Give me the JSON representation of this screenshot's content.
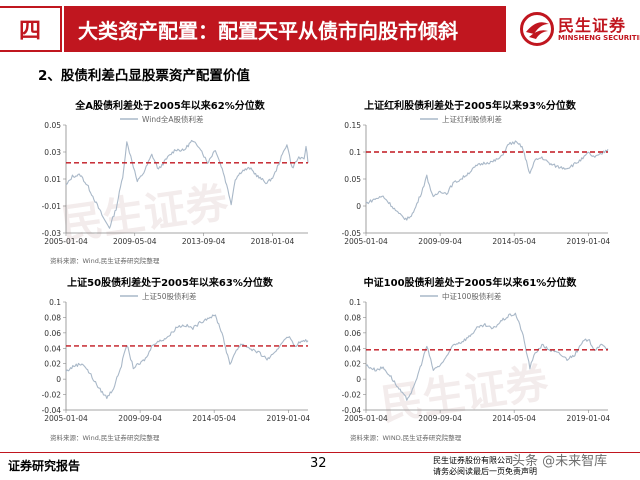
{
  "header": {
    "section_number": "四",
    "title": "大类资产配置：配置天平从债市向股市倾斜",
    "logo_cn": "民生证券",
    "logo_en": "MINSHENG SECURITIES"
  },
  "subheading": "2、股债利差凸显股票资产配置价值",
  "footer": {
    "left": "证券研究报告",
    "page": "32",
    "right_line1": "民生证券股份有限公司",
    "right_line2": "请务必阅读最后一页免责声明",
    "watermark": "头条 @未来智库"
  },
  "colors": {
    "brand": "#c0161f",
    "series": "#a9b8c8",
    "reference": "#c0161f"
  },
  "chart_data": [
    {
      "type": "line",
      "title": "全A股债利差处于2005年以来62%分位数",
      "legend": "Wind全A股债利差",
      "source": "资料来源：Wind,民生证券研究院整理",
      "yticks": [
        "0.05",
        "0.03",
        "0.01",
        "-0.01",
        "-0.03"
      ],
      "ylim": [
        -0.03,
        0.05
      ],
      "xticks": [
        "2005-01-04",
        "2009-05-04",
        "2013-09-04",
        "2018-01-04"
      ],
      "xrange": [
        "2005-01-04",
        "2020-03-31"
      ],
      "reference_value": 0.022,
      "series": [
        {
          "x": "2005-01-04",
          "y": 0.005
        },
        {
          "x": "2005-06-01",
          "y": 0.012
        },
        {
          "x": "2005-12-01",
          "y": 0.013
        },
        {
          "x": "2006-06-01",
          "y": 0.004
        },
        {
          "x": "2006-12-01",
          "y": -0.008
        },
        {
          "x": "2007-06-01",
          "y": -0.02
        },
        {
          "x": "2007-10-01",
          "y": -0.026
        },
        {
          "x": "2008-03-01",
          "y": -0.012
        },
        {
          "x": "2008-08-01",
          "y": 0.012
        },
        {
          "x": "2008-11-01",
          "y": 0.037
        },
        {
          "x": "2009-02-01",
          "y": 0.027
        },
        {
          "x": "2009-07-01",
          "y": 0.008
        },
        {
          "x": "2009-12-01",
          "y": 0.015
        },
        {
          "x": "2010-06-01",
          "y": 0.028
        },
        {
          "x": "2010-11-01",
          "y": 0.017
        },
        {
          "x": "2011-06-01",
          "y": 0.026
        },
        {
          "x": "2011-12-01",
          "y": 0.032
        },
        {
          "x": "2012-06-01",
          "y": 0.031
        },
        {
          "x": "2012-12-01",
          "y": 0.038
        },
        {
          "x": "2013-06-01",
          "y": 0.034
        },
        {
          "x": "2013-12-01",
          "y": 0.022
        },
        {
          "x": "2014-06-01",
          "y": 0.032
        },
        {
          "x": "2014-12-01",
          "y": 0.015
        },
        {
          "x": "2015-06-01",
          "y": -0.008
        },
        {
          "x": "2015-09-01",
          "y": 0.01
        },
        {
          "x": "2016-02-01",
          "y": 0.016
        },
        {
          "x": "2016-08-01",
          "y": 0.018
        },
        {
          "x": "2017-03-01",
          "y": 0.011
        },
        {
          "x": "2017-09-01",
          "y": 0.007
        },
        {
          "x": "2018-02-01",
          "y": 0.012
        },
        {
          "x": "2018-07-01",
          "y": 0.024
        },
        {
          "x": "2018-12-01",
          "y": 0.036
        },
        {
          "x": "2019-04-01",
          "y": 0.018
        },
        {
          "x": "2019-09-01",
          "y": 0.026
        },
        {
          "x": "2020-01-01",
          "y": 0.024
        },
        {
          "x": "2020-02-15",
          "y": 0.035
        },
        {
          "x": "2020-03-31",
          "y": 0.022
        }
      ]
    },
    {
      "type": "line",
      "title": "上证红利股债利差处于2005年以来93%分位数",
      "legend": "上证红利股债利差",
      "source": "",
      "yticks": [
        "0.15",
        "0.1",
        "0.05",
        "0",
        "-0.05"
      ],
      "ylim": [
        -0.05,
        0.15
      ],
      "xticks": [
        "2005-01-04",
        "2009-09-04",
        "2014-05-04",
        "2019-01-04"
      ],
      "xrange": [
        "2005-01-04",
        "2020-03-31"
      ],
      "reference_value": 0.1,
      "series": [
        {
          "x": "2005-01-04",
          "y": 0.005
        },
        {
          "x": "2005-08-01",
          "y": 0.013
        },
        {
          "x": "2006-02-01",
          "y": 0.018
        },
        {
          "x": "2006-08-01",
          "y": 0.002
        },
        {
          "x": "2007-02-01",
          "y": -0.015
        },
        {
          "x": "2007-08-01",
          "y": -0.025
        },
        {
          "x": "2008-01-01",
          "y": -0.012
        },
        {
          "x": "2008-07-01",
          "y": 0.025
        },
        {
          "x": "2008-11-01",
          "y": 0.055
        },
        {
          "x": "2009-04-01",
          "y": 0.015
        },
        {
          "x": "2009-09-01",
          "y": 0.028
        },
        {
          "x": "2010-02-01",
          "y": 0.023
        },
        {
          "x": "2010-07-01",
          "y": 0.042
        },
        {
          "x": "2011-01-01",
          "y": 0.05
        },
        {
          "x": "2011-07-01",
          "y": 0.062
        },
        {
          "x": "2012-01-01",
          "y": 0.075
        },
        {
          "x": "2012-07-01",
          "y": 0.08
        },
        {
          "x": "2013-01-01",
          "y": 0.082
        },
        {
          "x": "2013-07-01",
          "y": 0.09
        },
        {
          "x": "2014-01-01",
          "y": 0.115
        },
        {
          "x": "2014-06-01",
          "y": 0.118
        },
        {
          "x": "2014-11-01",
          "y": 0.11
        },
        {
          "x": "2015-05-01",
          "y": 0.06
        },
        {
          "x": "2015-09-01",
          "y": 0.085
        },
        {
          "x": "2016-02-01",
          "y": 0.09
        },
        {
          "x": "2016-08-01",
          "y": 0.078
        },
        {
          "x": "2017-03-01",
          "y": 0.072
        },
        {
          "x": "2017-09-01",
          "y": 0.07
        },
        {
          "x": "2018-03-01",
          "y": 0.078
        },
        {
          "x": "2018-09-01",
          "y": 0.088
        },
        {
          "x": "2019-01-01",
          "y": 0.098
        },
        {
          "x": "2019-06-01",
          "y": 0.09
        },
        {
          "x": "2019-10-01",
          "y": 0.095
        },
        {
          "x": "2020-03-31",
          "y": 0.105
        }
      ]
    },
    {
      "type": "line",
      "title": "上证50股债利差处于2005年以来63%分位数",
      "legend": "上证50股债利差",
      "source": "资料来源：Wind,民生证券研究院整理",
      "yticks": [
        "0.1",
        "0.08",
        "0.06",
        "0.04",
        "0.02",
        "0",
        "-0.02",
        "-0.04"
      ],
      "ylim": [
        -0.04,
        0.1
      ],
      "xticks": [
        "2005-01-04",
        "2009-09-04",
        "2014-05-04",
        "2019-01-04"
      ],
      "xrange": [
        "2005-01-04",
        "2020-03-31"
      ],
      "reference_value": 0.043,
      "series": [
        {
          "x": "2005-01-04",
          "y": 0.01
        },
        {
          "x": "2005-08-01",
          "y": 0.018
        },
        {
          "x": "2006-02-01",
          "y": 0.02
        },
        {
          "x": "2006-08-01",
          "y": 0.005
        },
        {
          "x": "2007-02-01",
          "y": -0.012
        },
        {
          "x": "2007-08-01",
          "y": -0.024
        },
        {
          "x": "2008-01-01",
          "y": -0.012
        },
        {
          "x": "2008-07-01",
          "y": 0.018
        },
        {
          "x": "2008-11-01",
          "y": 0.045
        },
        {
          "x": "2009-04-01",
          "y": 0.015
        },
        {
          "x": "2009-09-01",
          "y": 0.02
        },
        {
          "x": "2010-02-01",
          "y": 0.028
        },
        {
          "x": "2010-07-01",
          "y": 0.046
        },
        {
          "x": "2011-01-01",
          "y": 0.05
        },
        {
          "x": "2011-07-01",
          "y": 0.056
        },
        {
          "x": "2012-01-01",
          "y": 0.068
        },
        {
          "x": "2012-07-01",
          "y": 0.07
        },
        {
          "x": "2013-01-01",
          "y": 0.066
        },
        {
          "x": "2013-07-01",
          "y": 0.074
        },
        {
          "x": "2014-01-01",
          "y": 0.08
        },
        {
          "x": "2014-06-01",
          "y": 0.082
        },
        {
          "x": "2014-11-01",
          "y": 0.06
        },
        {
          "x": "2015-05-01",
          "y": 0.018
        },
        {
          "x": "2015-09-01",
          "y": 0.036
        },
        {
          "x": "2016-02-01",
          "y": 0.046
        },
        {
          "x": "2016-08-01",
          "y": 0.04
        },
        {
          "x": "2017-03-01",
          "y": 0.034
        },
        {
          "x": "2017-09-01",
          "y": 0.026
        },
        {
          "x": "2018-03-01",
          "y": 0.033
        },
        {
          "x": "2018-09-01",
          "y": 0.05
        },
        {
          "x": "2019-01-01",
          "y": 0.056
        },
        {
          "x": "2019-06-01",
          "y": 0.043
        },
        {
          "x": "2019-10-01",
          "y": 0.048
        },
        {
          "x": "2020-03-31",
          "y": 0.05
        }
      ]
    },
    {
      "type": "line",
      "title": "中证100股债利差处于2005年以来61%分位数",
      "legend": "中证100股债利差",
      "source": "资料来源：WIND,民生证券研究院整理",
      "yticks": [
        "0.1",
        "0.08",
        "0.06",
        "0.04",
        "0.02",
        "0",
        "-0.02",
        "-0.04"
      ],
      "ylim": [
        -0.04,
        0.1
      ],
      "xticks": [
        "2005-01-04",
        "2009-09-04",
        "2014-05-04",
        "2019-01-04"
      ],
      "xrange": [
        "2005-01-04",
        "2020-03-31"
      ],
      "reference_value": 0.038,
      "series": [
        {
          "x": "2005-01-04",
          "y": 0.018
        },
        {
          "x": "2005-08-01",
          "y": 0.012
        },
        {
          "x": "2006-02-01",
          "y": 0.015
        },
        {
          "x": "2006-08-01",
          "y": 0.003
        },
        {
          "x": "2007-02-01",
          "y": -0.013
        },
        {
          "x": "2007-08-01",
          "y": -0.026
        },
        {
          "x": "2008-01-01",
          "y": -0.012
        },
        {
          "x": "2008-07-01",
          "y": 0.02
        },
        {
          "x": "2008-11-01",
          "y": 0.043
        },
        {
          "x": "2009-04-01",
          "y": 0.012
        },
        {
          "x": "2009-09-01",
          "y": 0.018
        },
        {
          "x": "2010-02-01",
          "y": 0.028
        },
        {
          "x": "2010-07-01",
          "y": 0.045
        },
        {
          "x": "2011-01-01",
          "y": 0.048
        },
        {
          "x": "2011-07-01",
          "y": 0.055
        },
        {
          "x": "2012-01-01",
          "y": 0.066
        },
        {
          "x": "2012-07-01",
          "y": 0.07
        },
        {
          "x": "2013-01-01",
          "y": 0.065
        },
        {
          "x": "2013-07-01",
          "y": 0.075
        },
        {
          "x": "2014-01-01",
          "y": 0.082
        },
        {
          "x": "2014-06-01",
          "y": 0.085
        },
        {
          "x": "2014-11-01",
          "y": 0.062
        },
        {
          "x": "2015-05-01",
          "y": 0.015
        },
        {
          "x": "2015-09-01",
          "y": 0.034
        },
        {
          "x": "2016-02-01",
          "y": 0.044
        },
        {
          "x": "2016-08-01",
          "y": 0.038
        },
        {
          "x": "2017-03-01",
          "y": 0.033
        },
        {
          "x": "2017-09-01",
          "y": 0.026
        },
        {
          "x": "2018-03-01",
          "y": 0.032
        },
        {
          "x": "2018-09-01",
          "y": 0.048
        },
        {
          "x": "2019-01-01",
          "y": 0.052
        },
        {
          "x": "2019-06-01",
          "y": 0.038
        },
        {
          "x": "2019-10-01",
          "y": 0.044
        },
        {
          "x": "2020-03-31",
          "y": 0.04
        }
      ]
    }
  ]
}
